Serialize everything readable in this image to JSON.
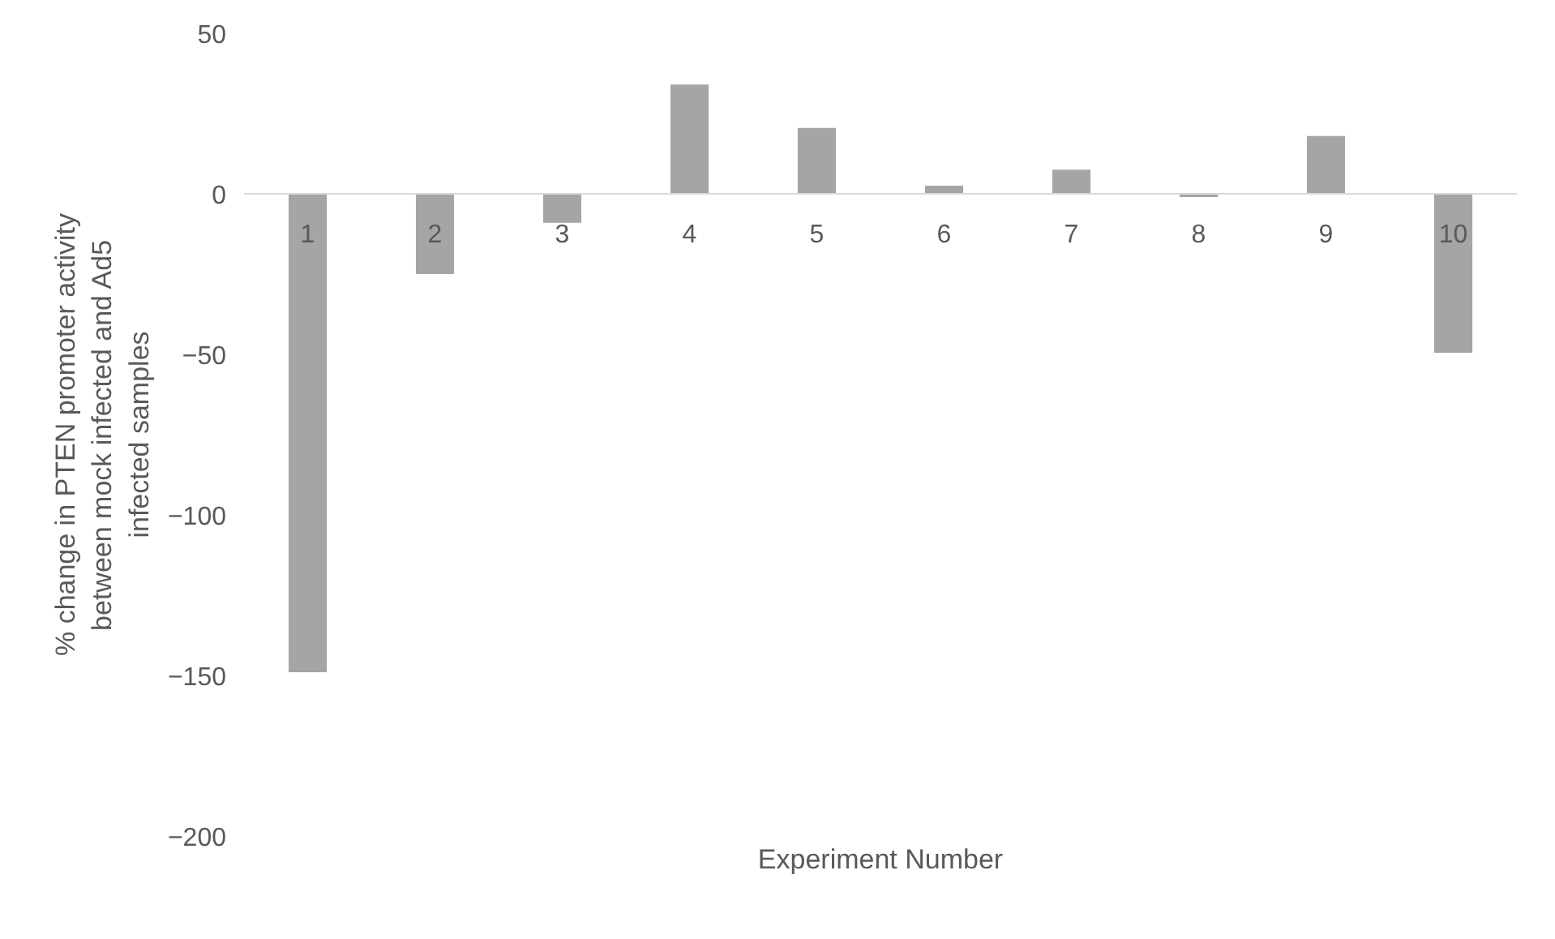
{
  "chart_data": {
    "type": "bar",
    "xlabel": "Experiment Number",
    "ylabel": "% change in PTEN promoter activity between mock infected and Ad5 infected samples",
    "categories": [
      "1",
      "2",
      "3",
      "4",
      "5",
      "6",
      "7",
      "8",
      "9",
      "10"
    ],
    "values": [
      -149,
      -25,
      -9,
      34,
      20.5,
      2.5,
      7.5,
      -1,
      18,
      -49.5
    ],
    "color": "#a5a5a5",
    "ylim": [
      -200,
      50
    ],
    "yticks": [
      -200,
      -150,
      -100,
      -50,
      0,
      50
    ],
    "grid": false
  }
}
